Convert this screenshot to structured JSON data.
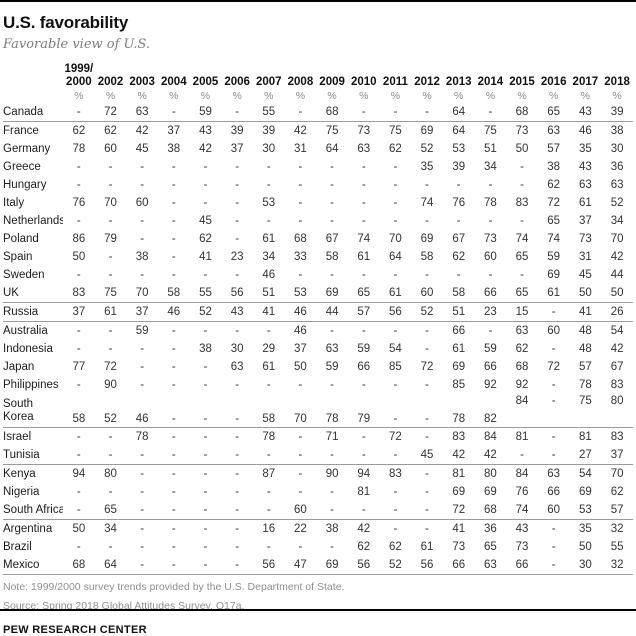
{
  "title": "U.S. favorability",
  "subtitle": "Favorable view of U.S.",
  "footer": {
    "note": "Note: 1999/2000 survey trends provided by the U.S. Department of State.",
    "source": "Source: Spring 2018 Global Attitudes Survey. Q17a.",
    "brand": "PEW RESEARCH CENTER"
  },
  "colors": {
    "rule": "#000000",
    "divider": "#9b9b9b",
    "text": "#333333",
    "muted": "#8a8a8a",
    "note": "#8f8f8f"
  },
  "chart_data": {
    "type": "table",
    "title": "U.S. favorability",
    "subtitle": "Favorable view of U.S.",
    "unit": "%",
    "columns": [
      "1999/\n2000",
      "2002",
      "2003",
      "2004",
      "2005",
      "2006",
      "2007",
      "2008",
      "2009",
      "2010",
      "2011",
      "2012",
      "2013",
      "2014",
      "2015",
      "2016",
      "2017",
      "2018"
    ],
    "percent_label": "%",
    "rows": [
      {
        "country": "Canada",
        "values": [
          "-",
          "72",
          "63",
          "-",
          "59",
          "-",
          "55",
          "-",
          "68",
          "-",
          "-",
          "-",
          "64",
          "-",
          "68",
          "65",
          "43",
          "39"
        ],
        "divider_after": true
      },
      {
        "country": "France",
        "values": [
          "62",
          "62",
          "42",
          "37",
          "43",
          "39",
          "39",
          "42",
          "75",
          "73",
          "75",
          "69",
          "64",
          "75",
          "73",
          "63",
          "46",
          "38"
        ]
      },
      {
        "country": "Germany",
        "values": [
          "78",
          "60",
          "45",
          "38",
          "42",
          "37",
          "30",
          "31",
          "64",
          "63",
          "62",
          "52",
          "53",
          "51",
          "50",
          "57",
          "35",
          "30"
        ]
      },
      {
        "country": "Greece",
        "values": [
          "-",
          "-",
          "-",
          "-",
          "-",
          "-",
          "-",
          "-",
          "-",
          "-",
          "-",
          "35",
          "39",
          "34",
          "-",
          "38",
          "43",
          "36"
        ]
      },
      {
        "country": "Hungary",
        "values": [
          "-",
          "-",
          "-",
          "-",
          "-",
          "-",
          "-",
          "-",
          "-",
          "-",
          "-",
          "-",
          "-",
          "-",
          "-",
          "62",
          "63",
          "63"
        ]
      },
      {
        "country": "Italy",
        "values": [
          "76",
          "70",
          "60",
          "-",
          "-",
          "-",
          "53",
          "-",
          "-",
          "-",
          "-",
          "74",
          "76",
          "78",
          "83",
          "72",
          "61",
          "52"
        ]
      },
      {
        "country": "Netherlands",
        "values": [
          "-",
          "-",
          "-",
          "-",
          "45",
          "-",
          "-",
          "-",
          "-",
          "-",
          "-",
          "-",
          "-",
          "-",
          "-",
          "65",
          "37",
          "34"
        ]
      },
      {
        "country": "Poland",
        "values": [
          "86",
          "79",
          "-",
          "-",
          "62",
          "-",
          "61",
          "68",
          "67",
          "74",
          "70",
          "69",
          "67",
          "73",
          "74",
          "74",
          "73",
          "70"
        ]
      },
      {
        "country": "Spain",
        "values": [
          "50",
          "-",
          "38",
          "-",
          "41",
          "23",
          "34",
          "33",
          "58",
          "61",
          "64",
          "58",
          "62",
          "60",
          "65",
          "59",
          "31",
          "42"
        ]
      },
      {
        "country": "Sweden",
        "values": [
          "-",
          "-",
          "-",
          "-",
          "-",
          "-",
          "46",
          "-",
          "-",
          "-",
          "-",
          "-",
          "-",
          "-",
          "-",
          "69",
          "45",
          "44"
        ]
      },
      {
        "country": "UK",
        "values": [
          "83",
          "75",
          "70",
          "58",
          "55",
          "56",
          "51",
          "53",
          "69",
          "65",
          "61",
          "60",
          "58",
          "66",
          "65",
          "61",
          "50",
          "50"
        ],
        "divider_after": true
      },
      {
        "country": "Russia",
        "values": [
          "37",
          "61",
          "37",
          "46",
          "52",
          "43",
          "41",
          "46",
          "44",
          "57",
          "56",
          "52",
          "51",
          "23",
          "15",
          "-",
          "41",
          "26"
        ],
        "divider_after": true
      },
      {
        "country": "Australia",
        "values": [
          "-",
          "-",
          "59",
          "-",
          "-",
          "-",
          "-",
          "46",
          "-",
          "-",
          "-",
          "-",
          "66",
          "-",
          "63",
          "60",
          "48",
          "54"
        ]
      },
      {
        "country": "Indonesia",
        "values": [
          "-",
          "-",
          "-",
          "-",
          "38",
          "30",
          "29",
          "37",
          "63",
          "59",
          "54",
          "-",
          "61",
          "59",
          "62",
          "-",
          "48",
          "42"
        ]
      },
      {
        "country": "Japan",
        "values": [
          "77",
          "72",
          "-",
          "-",
          "-",
          "63",
          "61",
          "50",
          "59",
          "66",
          "85",
          "72",
          "69",
          "66",
          "68",
          "72",
          "57",
          "67"
        ]
      },
      {
        "country": "Philippines",
        "values": [
          "-",
          "90",
          "-",
          "-",
          "-",
          "-",
          "-",
          "-",
          "-",
          "-",
          "-",
          "-",
          "85",
          "92",
          "92",
          "-",
          "78",
          "83"
        ]
      },
      {
        "country": "South\nKorea",
        "values": [
          "58",
          "52",
          "46",
          "-",
          "-",
          "-",
          "58",
          "70",
          "78",
          "79",
          "-",
          "-",
          "78",
          "82",
          "84",
          "-",
          "75",
          "80"
        ],
        "divider_after": true,
        "split_at": 14
      },
      {
        "country": "Israel",
        "values": [
          "-",
          "-",
          "78",
          "-",
          "-",
          "-",
          "78",
          "-",
          "71",
          "-",
          "72",
          "-",
          "83",
          "84",
          "81",
          "-",
          "81",
          "83"
        ]
      },
      {
        "country": "Tunisia",
        "values": [
          "-",
          "-",
          "-",
          "-",
          "-",
          "-",
          "-",
          "-",
          "-",
          "-",
          "-",
          "45",
          "42",
          "42",
          "-",
          "-",
          "27",
          "37"
        ],
        "divider_after": true
      },
      {
        "country": "Kenya",
        "values": [
          "94",
          "80",
          "-",
          "-",
          "-",
          "-",
          "87",
          "-",
          "90",
          "94",
          "83",
          "-",
          "81",
          "80",
          "84",
          "63",
          "54",
          "70"
        ]
      },
      {
        "country": "Nigeria",
        "values": [
          "-",
          "-",
          "-",
          "-",
          "-",
          "-",
          "-",
          "-",
          "-",
          "81",
          "-",
          "-",
          "69",
          "69",
          "76",
          "66",
          "69",
          "62"
        ]
      },
      {
        "country": "South Africa",
        "values": [
          "-",
          "65",
          "-",
          "-",
          "-",
          "-",
          "-",
          "60",
          "-",
          "-",
          "-",
          "-",
          "72",
          "68",
          "74",
          "60",
          "53",
          "57"
        ],
        "divider_after": true
      },
      {
        "country": "Argentina",
        "values": [
          "50",
          "34",
          "-",
          "-",
          "-",
          "-",
          "16",
          "22",
          "38",
          "42",
          "-",
          "-",
          "41",
          "36",
          "43",
          "-",
          "35",
          "32"
        ]
      },
      {
        "country": "Brazil",
        "values": [
          "-",
          "-",
          "-",
          "-",
          "-",
          "-",
          "-",
          "-",
          "-",
          "62",
          "62",
          "61",
          "73",
          "65",
          "73",
          "-",
          "50",
          "55"
        ]
      },
      {
        "country": "Mexico",
        "values": [
          "68",
          "64",
          "-",
          "-",
          "-",
          "-",
          "56",
          "47",
          "69",
          "56",
          "52",
          "56",
          "66",
          "63",
          "66",
          "-",
          "30",
          "32"
        ],
        "divider_after": true
      }
    ]
  }
}
